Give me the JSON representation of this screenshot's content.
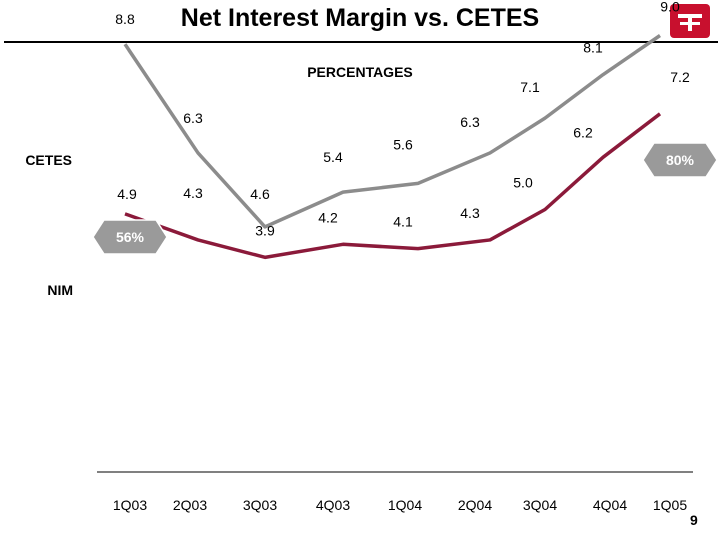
{
  "header": {
    "title": "Net Interest Margin vs. CETES",
    "page_number": "9",
    "brand_color": "#c8102e"
  },
  "chart_data": {
    "type": "line",
    "title": "Net Interest Margin vs. CETES",
    "subtitle": "PERCENTAGES",
    "categories": [
      "1Q03",
      "2Q03",
      "3Q03",
      "4Q03",
      "1Q04",
      "2Q04",
      "3Q04",
      "4Q04",
      "1Q05"
    ],
    "series": [
      {
        "name": "CETES",
        "values": [
          8.8,
          6.3,
          4.6,
          5.4,
          5.6,
          6.3,
          7.1,
          8.1,
          9.0
        ],
        "color": "#8c8c8c"
      },
      {
        "name": "NIM",
        "values": [
          4.9,
          4.3,
          3.9,
          4.2,
          4.1,
          4.3,
          5.0,
          6.2,
          7.2
        ],
        "color": "#8b1a3a"
      }
    ],
    "callouts": [
      {
        "label": "56%",
        "series": "NIM",
        "color": "#9a9a9a"
      },
      {
        "label": "80%",
        "series": "NIM",
        "color": "#9a9a9a"
      }
    ],
    "grid": false,
    "legend": "inline-left"
  }
}
